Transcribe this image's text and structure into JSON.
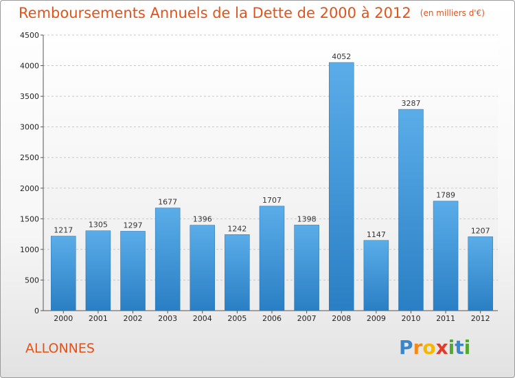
{
  "chart_data": {
    "type": "bar",
    "title": "Remboursements Annuels de la Dette de 2000 à 2012",
    "unit": "(en milliers d'€)",
    "categories": [
      "2000",
      "2001",
      "2002",
      "2003",
      "2004",
      "2005",
      "2006",
      "2007",
      "2008",
      "2009",
      "2010",
      "2011",
      "2012"
    ],
    "values": [
      1217,
      1305,
      1297,
      1677,
      1396,
      1242,
      1707,
      1398,
      4052,
      1147,
      3287,
      1789,
      1207
    ],
    "ylim": [
      0,
      4500
    ],
    "yticks": [
      0,
      500,
      1000,
      1500,
      2000,
      2500,
      3000,
      3500,
      4000,
      4500
    ],
    "grid": true,
    "colors": {
      "bar_top": "#5aade8",
      "bar_bottom": "#2a7fc4",
      "title": "#e0531a"
    }
  },
  "commune": "ALLONNES",
  "logo": {
    "letters": [
      "P",
      "r",
      "o",
      "x",
      "i",
      "t",
      "i"
    ],
    "colors": [
      "#3a86c8",
      "#f08a1c",
      "#f5b800",
      "#e03a2a",
      "#52a832",
      "#3a86c8",
      "#52a832"
    ]
  }
}
